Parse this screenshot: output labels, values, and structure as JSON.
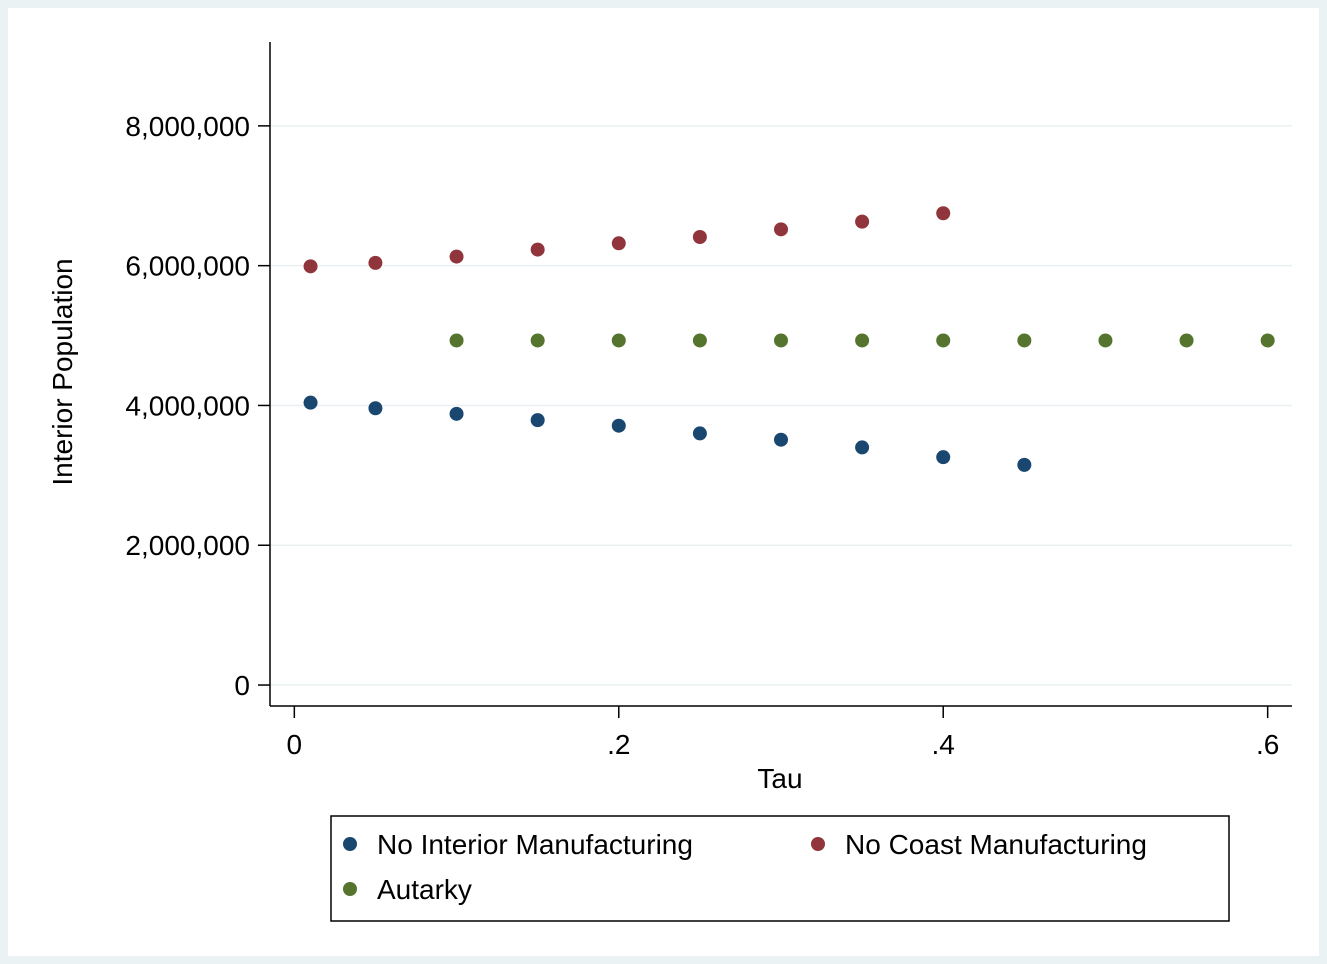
{
  "chart_data": {
    "type": "scatter",
    "xlabel": "Tau",
    "ylabel": "Interior Population",
    "xlim": [
      -0.015,
      0.615
    ],
    "ylim": [
      -300000,
      9200000
    ],
    "xticks": [
      0,
      0.2,
      0.4,
      0.6
    ],
    "xtick_labels": [
      "0",
      ".2",
      ".4",
      ".6"
    ],
    "yticks": [
      0,
      2000000,
      4000000,
      6000000,
      8000000
    ],
    "ytick_labels": [
      "0",
      "2,000,000",
      "4,000,000",
      "6,000,000",
      "8,000,000"
    ],
    "grid": "horizontal",
    "legend_position": "bottom",
    "series": [
      {
        "name": "No Interior Manufacturing",
        "color": "#1a476f",
        "x": [
          0.01,
          0.05,
          0.1,
          0.15,
          0.2,
          0.25,
          0.3,
          0.35,
          0.4,
          0.45
        ],
        "y": [
          4040000,
          3960000,
          3880000,
          3790000,
          3710000,
          3600000,
          3510000,
          3400000,
          3260000,
          3150000
        ]
      },
      {
        "name": "No Coast Manufacturing",
        "color": "#90353b",
        "x": [
          0.01,
          0.05,
          0.1,
          0.15,
          0.2,
          0.25,
          0.3,
          0.35,
          0.4
        ],
        "y": [
          5990000,
          6040000,
          6130000,
          6230000,
          6320000,
          6410000,
          6520000,
          6630000,
          6750000
        ]
      },
      {
        "name": "Autarky",
        "color": "#55752f",
        "x": [
          0.1,
          0.15,
          0.2,
          0.25,
          0.3,
          0.35,
          0.4,
          0.45,
          0.5,
          0.55,
          0.6
        ],
        "y": [
          4930000,
          4930000,
          4930000,
          4930000,
          4930000,
          4930000,
          4930000,
          4930000,
          4930000,
          4930000,
          4930000
        ]
      }
    ]
  }
}
